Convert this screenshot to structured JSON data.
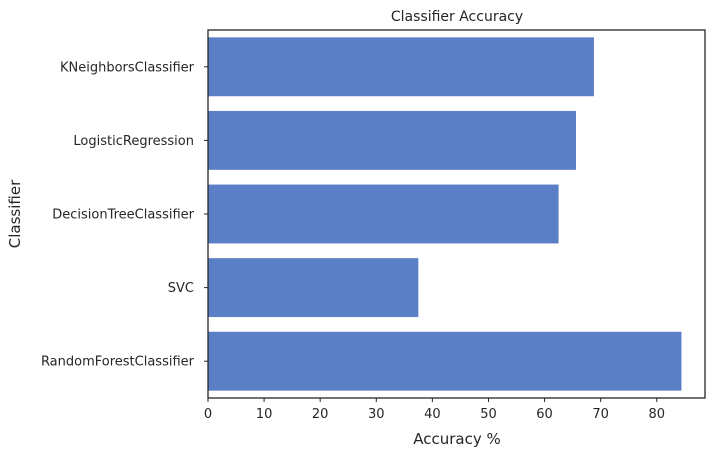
{
  "chart_data": {
    "type": "bar",
    "orientation": "horizontal",
    "title": "Classifier Accuracy",
    "xlabel": "Accuracy %",
    "ylabel": "Classifier",
    "categories": [
      "KNeighborsClassifier",
      "LogisticRegression",
      "DecisionTreeClassifier",
      "SVC",
      "RandomForestClassifier"
    ],
    "values": [
      68.8,
      65.6,
      62.5,
      37.5,
      84.4
    ],
    "xlim": [
      0,
      88.6
    ],
    "xticks": [
      "0",
      "10",
      "20",
      "30",
      "40",
      "50",
      "60",
      "70",
      "80"
    ],
    "grid": false,
    "bar_color": "#5b7fc7",
    "axes_color": "#262626"
  }
}
